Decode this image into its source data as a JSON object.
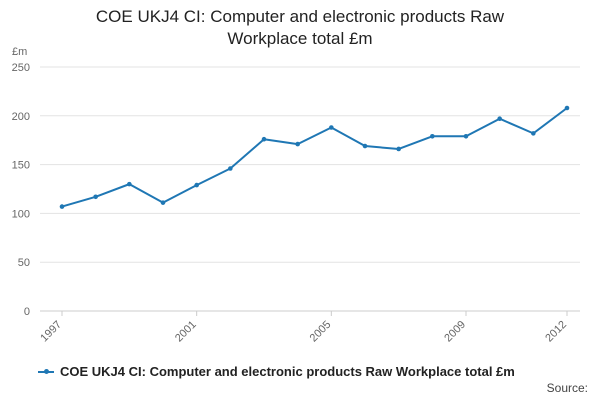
{
  "title_lines": [
    "COE UKJ4 CI: Computer and electronic products Raw",
    "Workplace total £m"
  ],
  "source_label": "Source:",
  "chart_data": {
    "type": "line",
    "title": "COE UKJ4 CI: Computer and electronic products Raw Workplace total £m",
    "ylabel": "£m",
    "xlabel": "",
    "ylim": [
      0,
      250
    ],
    "yticks": [
      0,
      50,
      100,
      150,
      200,
      250
    ],
    "xlim": [
      1997,
      2012
    ],
    "xticks": [
      1997,
      2001,
      2005,
      2009,
      2012
    ],
    "grid": true,
    "legend_position": "bottom-left",
    "color": "#1f77b4",
    "series": [
      {
        "name": "COE UKJ4 CI: Computer and electronic products Raw Workplace total £m",
        "x": [
          1997,
          1998,
          1999,
          2000,
          2001,
          2002,
          2003,
          2004,
          2005,
          2006,
          2007,
          2008,
          2009,
          2010,
          2011,
          2012
        ],
        "y": [
          107,
          117,
          130,
          111,
          129,
          146,
          176,
          171,
          188,
          169,
          166,
          179,
          179,
          197,
          182,
          208
        ]
      }
    ]
  }
}
